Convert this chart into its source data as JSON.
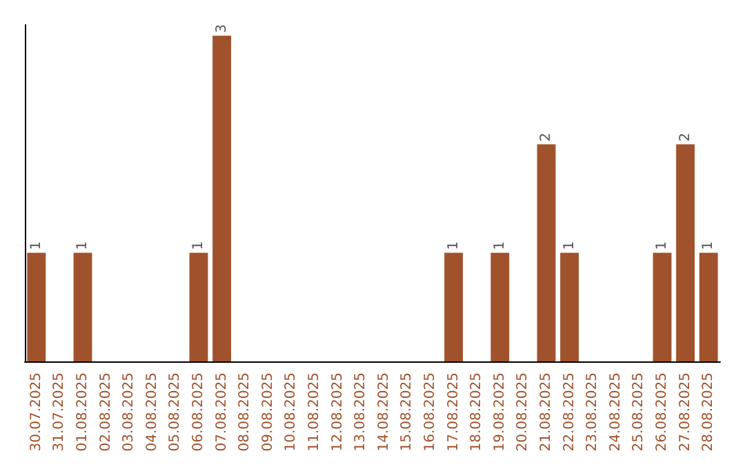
{
  "chart_data": {
    "type": "bar",
    "categories": [
      "30.07.2025",
      "31.07.2025",
      "01.08.2025",
      "02.08.2025",
      "03.08.2025",
      "04.08.2025",
      "05.08.2025",
      "06.08.2025",
      "07.08.2025",
      "08.08.2025",
      "09.08.2025",
      "10.08.2025",
      "11.08.2025",
      "12.08.2025",
      "13.08.2025",
      "14.08.2025",
      "15.08.2025",
      "16.08.2025",
      "17.08.2025",
      "18.08.2025",
      "19.08.2025",
      "20.08.2025",
      "21.08.2025",
      "22.08.2025",
      "23.08.2025",
      "24.08.2025",
      "25.08.2025",
      "26.08.2025",
      "27.08.2025",
      "28.08.2025"
    ],
    "values": [
      1,
      0,
      1,
      0,
      0,
      0,
      0,
      1,
      3,
      0,
      0,
      0,
      0,
      0,
      0,
      0,
      0,
      0,
      1,
      0,
      1,
      0,
      2,
      1,
      0,
      0,
      0,
      1,
      2,
      1
    ],
    "value_labels": [
      "1",
      null,
      "1",
      null,
      null,
      null,
      null,
      "1",
      "3",
      null,
      null,
      null,
      null,
      null,
      null,
      null,
      null,
      null,
      "1",
      null,
      "1",
      null,
      "2",
      "1",
      null,
      null,
      null,
      "1",
      "2",
      "1"
    ],
    "color": "#a0522d",
    "ylim": [
      0,
      3.1
    ],
    "tick_labels": "x"
  }
}
